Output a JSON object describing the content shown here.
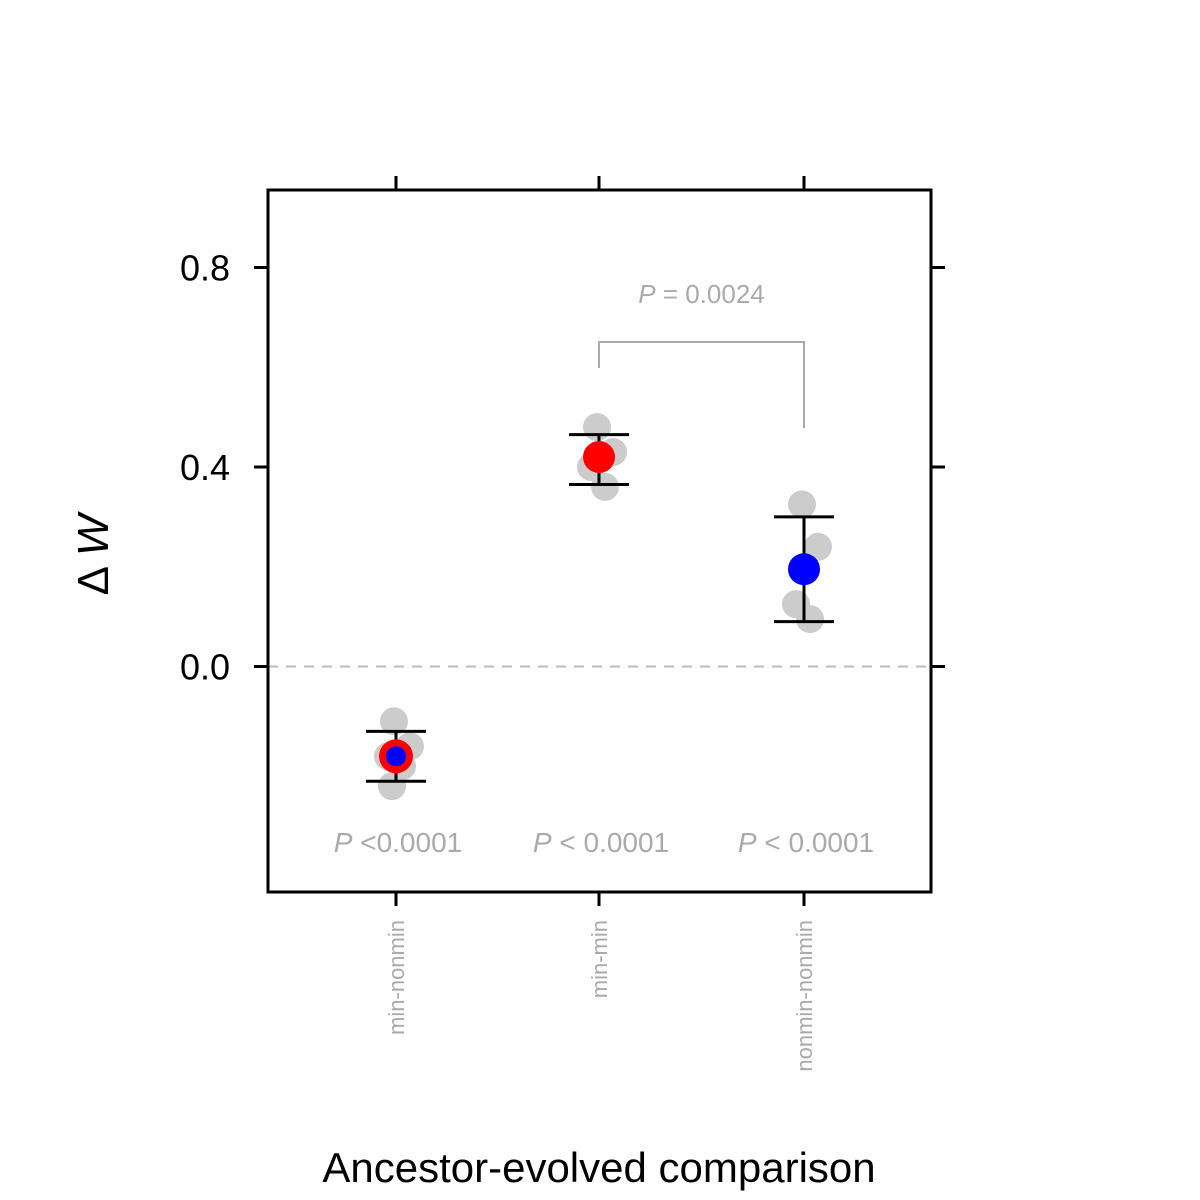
{
  "chart_data": {
    "type": "scatter",
    "xlabel": "Ancestor-evolved comparison",
    "ylabel_prefix": "Δ",
    "ylabel_var": "W",
    "ylim": [
      -0.45,
      0.95
    ],
    "y_ticks": [
      0.0,
      0.4,
      0.8
    ],
    "y_tick_labels": [
      "0.0",
      "0.4",
      "0.8"
    ],
    "categories": [
      "min-nonmin",
      "min-min",
      "nonmin-nonmin"
    ],
    "reference_line": {
      "y": 0.0,
      "style": "dashed"
    },
    "groups": [
      {
        "category": "min-nonmin",
        "mean": -0.18,
        "error_bar": [
          -0.23,
          -0.13
        ],
        "replicates": [
          -0.11,
          -0.16,
          -0.18,
          -0.2,
          -0.24
        ],
        "marker": "two-color",
        "colors": [
          "#ff0000",
          "#0000ff"
        ],
        "p_italic": "P",
        "p_rest": " <0.0001"
      },
      {
        "category": "min-min",
        "mean": 0.42,
        "error_bar": [
          0.365,
          0.465
        ],
        "replicates": [
          0.48,
          0.43,
          0.4,
          0.36
        ],
        "marker": "single",
        "colors": [
          "#ff0000"
        ],
        "p_italic": "P",
        "p_rest": " < 0.0001"
      },
      {
        "category": "nonmin-nonmin",
        "mean": 0.195,
        "error_bar": [
          0.09,
          0.3
        ],
        "replicates": [
          0.325,
          0.24,
          0.125,
          0.095
        ],
        "marker": "single",
        "colors": [
          "#0000ff"
        ],
        "p_italic": "P",
        "p_rest": " < 0.0001"
      }
    ],
    "comparison": {
      "between": [
        "min-min",
        "nonmin-nonmin"
      ],
      "p_italic": "P",
      "p_rest": " = 0.0024"
    },
    "replicate_color": "#cccccc",
    "annotation_color": "#aaaaaa",
    "grid": false
  }
}
